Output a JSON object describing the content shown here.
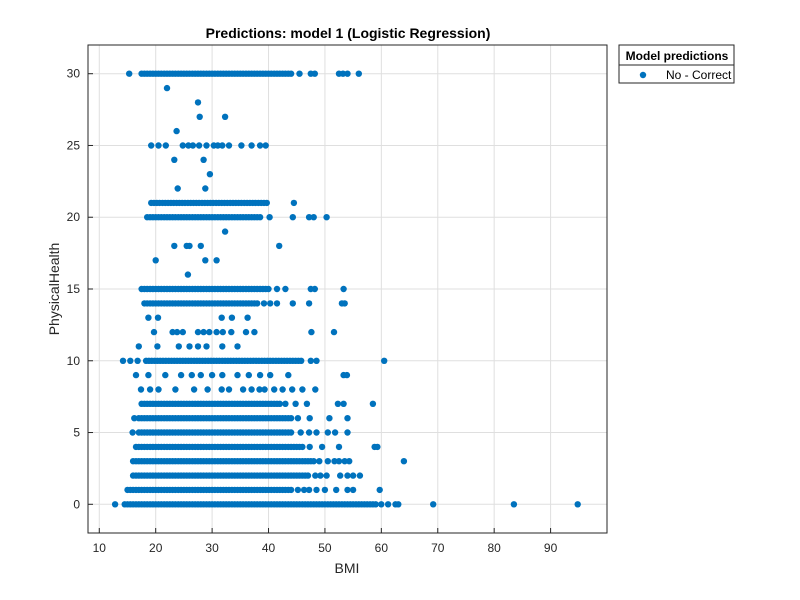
{
  "chart_data": {
    "type": "scatter",
    "title": "Predictions: model 1 (Logistic Regression)",
    "xlabel": "BMI",
    "ylabel": "PhysicalHealth",
    "xlim": [
      8,
      100
    ],
    "ylim": [
      -2,
      32
    ],
    "xticks": [
      10,
      20,
      30,
      40,
      50,
      60,
      70,
      80,
      90
    ],
    "yticks": [
      0,
      5,
      10,
      15,
      20,
      25,
      30
    ],
    "grid": true,
    "legend": {
      "title": "Model predictions",
      "placement": "outside-top-right",
      "entries": [
        "No - Correct"
      ]
    },
    "colors": {
      "marker": "#0072BD",
      "grid": "#dfdfdf",
      "axis": "#262626"
    },
    "series": [
      {
        "name": "No - Correct",
        "rows": [
          {
            "y": 30,
            "ranges": [
              [
                17.5,
                44
              ]
            ],
            "points": [
              15.3,
              45.5,
              47.5,
              48.2,
              52.5,
              53.2,
              54,
              56
            ]
          },
          {
            "y": 29,
            "ranges": [],
            "points": [
              22
            ]
          },
          {
            "y": 28,
            "ranges": [],
            "points": [
              27.5
            ]
          },
          {
            "y": 27,
            "ranges": [],
            "points": [
              27.8,
              32.3
            ]
          },
          {
            "y": 26,
            "ranges": [],
            "points": [
              23.7
            ]
          },
          {
            "y": 25,
            "ranges": [],
            "points": [
              19.2,
              20.5,
              21.8,
              24.8,
              25.8,
              26.6,
              27.7,
              29,
              30.3,
              31,
              31.8,
              33,
              35.2,
              37,
              38.5,
              39.5
            ]
          },
          {
            "y": 24,
            "ranges": [],
            "points": [
              23.3,
              28.5
            ]
          },
          {
            "y": 23,
            "ranges": [],
            "points": [
              29.6
            ]
          },
          {
            "y": 22,
            "ranges": [],
            "points": [
              23.9,
              28.8
            ]
          },
          {
            "y": 21,
            "ranges": [
              [
                19.2,
                40
              ]
            ],
            "points": [
              44.5
            ]
          },
          {
            "y": 20,
            "ranges": [
              [
                18.5,
                38.5
              ]
            ],
            "points": [
              40.2,
              44.3,
              47.2,
              48,
              50.3
            ]
          },
          {
            "y": 19,
            "ranges": [],
            "points": [
              32.3
            ]
          },
          {
            "y": 18,
            "ranges": [],
            "points": [
              23.3,
              25.5,
              26,
              28,
              41.9
            ]
          },
          {
            "y": 17,
            "ranges": [],
            "points": [
              20,
              28.8,
              30.8
            ]
          },
          {
            "y": 16,
            "ranges": [],
            "points": [
              25.7
            ]
          },
          {
            "y": 15,
            "ranges": [
              [
                17.5,
                40
              ]
            ],
            "points": [
              41.5,
              43,
              47.5,
              48.2,
              53.3
            ]
          },
          {
            "y": 14,
            "ranges": [
              [
                18,
                38
              ]
            ],
            "points": [
              39.2,
              40.3,
              41.5,
              44.3,
              47.2,
              53,
              53.5
            ]
          },
          {
            "y": 13,
            "ranges": [],
            "points": [
              18.7,
              20.4,
              31.7,
              33.5,
              36.3
            ]
          },
          {
            "y": 12,
            "ranges": [],
            "points": [
              19.7,
              23,
              23.8,
              24.8,
              27.5,
              28.5,
              29.5,
              30.8,
              31.9,
              33.4,
              36,
              37.5,
              47.6,
              51.6
            ]
          },
          {
            "y": 11,
            "ranges": [],
            "points": [
              17,
              20.3,
              24.1,
              26,
              27.5,
              29,
              31.8,
              34.5
            ]
          },
          {
            "y": 10,
            "ranges": [
              [
                18.3,
                46
              ]
            ],
            "points": [
              14.2,
              15.5,
              16.8,
              47.5,
              48.5,
              60.5
            ]
          },
          {
            "y": 9,
            "ranges": [],
            "points": [
              16.5,
              18.7,
              21.7,
              24.5,
              26.4,
              28,
              30,
              31.8,
              34.5,
              36.5,
              38.5,
              40.3,
              43.5,
              53.3,
              53.9
            ]
          },
          {
            "y": 8,
            "ranges": [],
            "points": [
              17.4,
              19,
              20.5,
              23.5,
              26.8,
              29.2,
              31.7,
              33,
              35.5,
              37,
              38.4,
              39.3,
              41,
              42.5,
              44.2,
              46,
              48.3
            ]
          },
          {
            "y": 7,
            "ranges": [
              [
                17.5,
                42
              ]
            ],
            "points": [
              43,
              44.8,
              46.8,
              52.3,
              53.3,
              58.5
            ]
          },
          {
            "y": 6,
            "ranges": [
              [
                17,
                44
              ]
            ],
            "points": [
              16.2,
              45.2,
              47.3,
              50.8,
              54
            ]
          },
          {
            "y": 5,
            "ranges": [
              [
                17,
                44
              ]
            ],
            "points": [
              15.9,
              45.7,
              47.2,
              48.5,
              50.5,
              51.8,
              54
            ]
          },
          {
            "y": 4,
            "ranges": [
              [
                16.5,
                46
              ]
            ],
            "points": [
              47.3,
              49.5,
              52.5,
              58.8,
              59.3
            ]
          },
          {
            "y": 3,
            "ranges": [
              [
                16,
                48
              ]
            ],
            "points": [
              49,
              50.5,
              51.7,
              52.5,
              53.5,
              54.3,
              64
            ]
          },
          {
            "y": 2,
            "ranges": [
              [
                16,
                47
              ]
            ],
            "points": [
              48.3,
              49.2,
              50.3,
              52.7,
              54,
              55,
              56.2
            ]
          },
          {
            "y": 1,
            "ranges": [
              [
                15,
                44
              ]
            ],
            "points": [
              45.2,
              46.3,
              47.2,
              48.5,
              50,
              52,
              54,
              55,
              59.7
            ]
          },
          {
            "y": 0,
            "ranges": [
              [
                14.5,
                59
              ]
            ],
            "points": [
              12.8,
              60,
              61.2,
              62.5,
              63,
              69.2,
              83.5,
              94.8
            ]
          }
        ]
      }
    ]
  }
}
